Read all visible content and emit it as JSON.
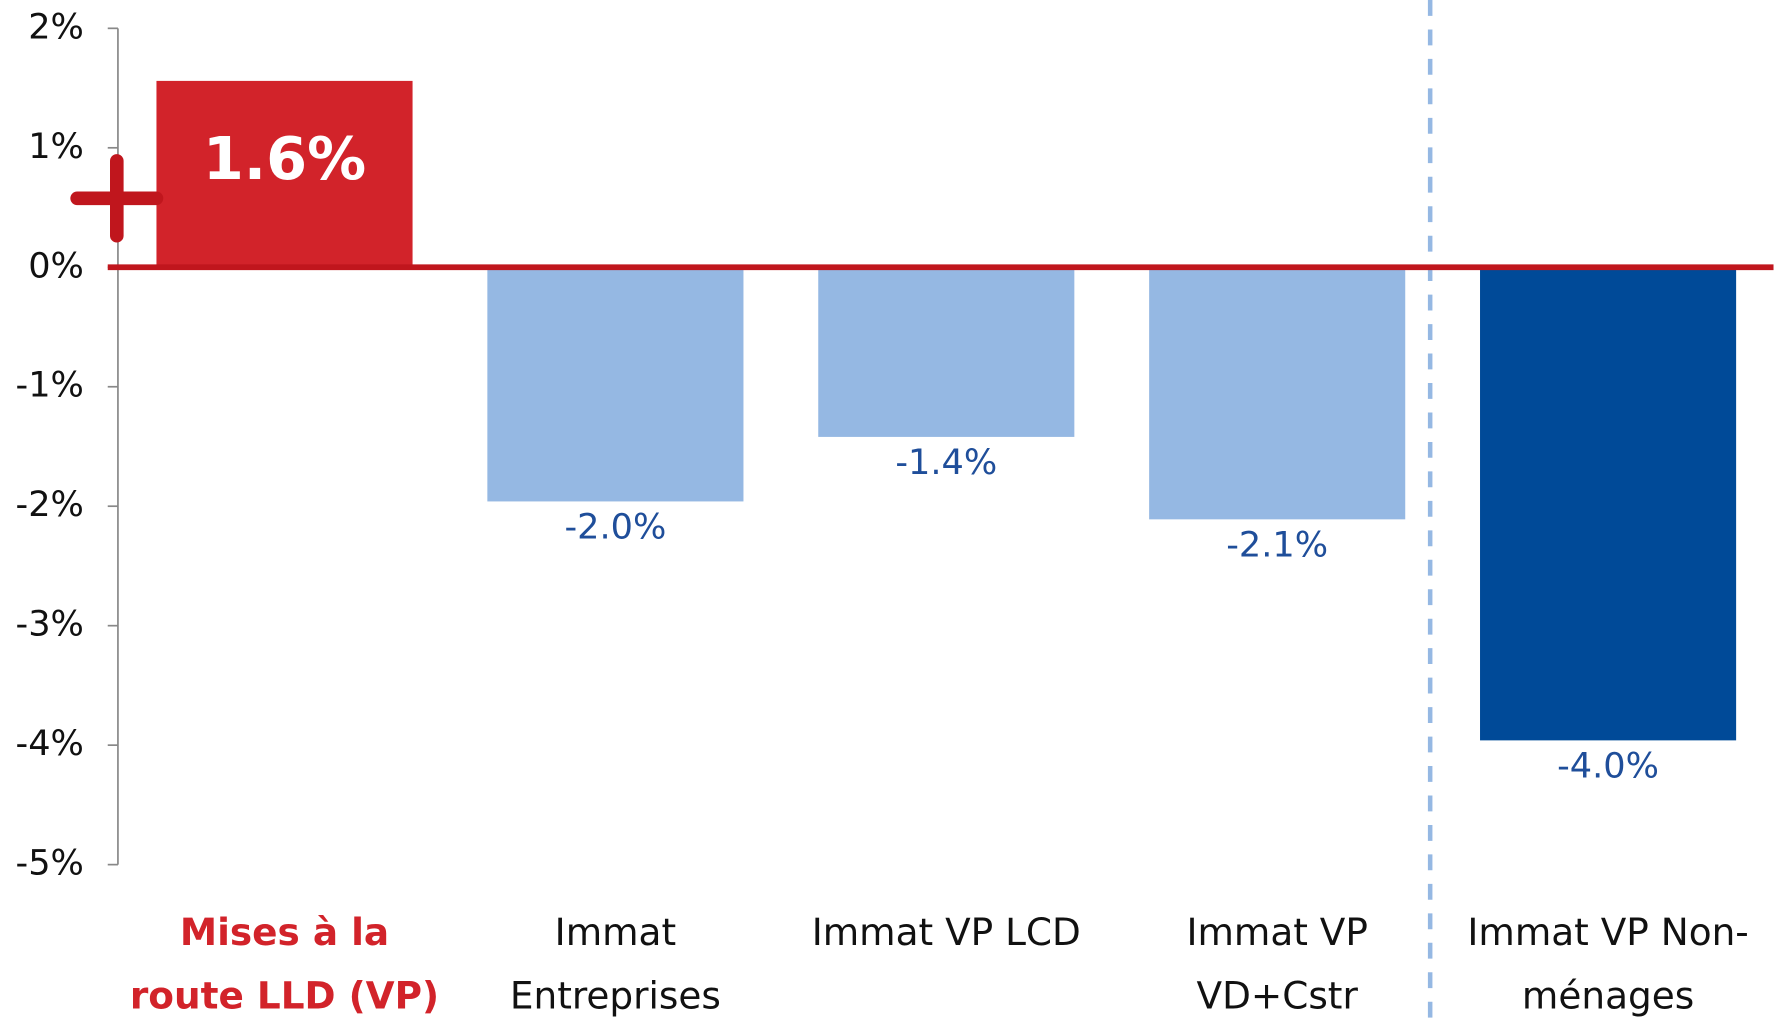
{
  "chart_data": {
    "type": "bar",
    "categories": [
      "Mises à la route LLD (VP)",
      "Immat Entreprises",
      "Immat VP LCD",
      "Immat VP VD+Cstr",
      "Immat VP Non-ménages"
    ],
    "values": [
      1.56,
      -1.96,
      -1.42,
      -2.11,
      -3.96
    ],
    "value_labels": [
      "1.6%",
      "-2.0%",
      "-1.4%",
      "-2.1%",
      "-4.0%"
    ],
    "colors": [
      "#d2232a",
      "#95b8e3",
      "#95b8e3",
      "#95b8e3",
      "#004a98"
    ],
    "ylim": [
      -5,
      2
    ],
    "yticks": [
      {
        "value": 2,
        "label": "2%"
      },
      {
        "value": 1,
        "label": "1%"
      },
      {
        "value": 0,
        "label": "0%"
      },
      {
        "value": -1,
        "label": "-1%"
      },
      {
        "value": -2,
        "label": "-2%"
      },
      {
        "value": -3,
        "label": "-3%"
      },
      {
        "value": -4,
        "label": "-4%"
      },
      {
        "value": -5,
        "label": "-5%"
      }
    ]
  }
}
